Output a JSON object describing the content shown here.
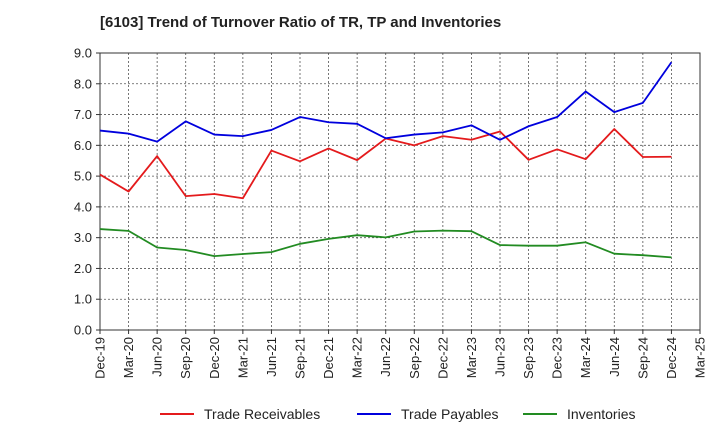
{
  "chart_data": {
    "type": "line",
    "title": "[6103]  Trend of Turnover Ratio of TR, TP and Inventories",
    "xlabel": "",
    "ylabel": "",
    "ylim": [
      0,
      9
    ],
    "yticks": [
      "0.0",
      "1.0",
      "2.0",
      "3.0",
      "4.0",
      "5.0",
      "6.0",
      "7.0",
      "8.0",
      "9.0"
    ],
    "categories": [
      "Dec-19",
      "Mar-20",
      "Jun-20",
      "Sep-20",
      "Dec-20",
      "Mar-21",
      "Jun-21",
      "Sep-21",
      "Dec-21",
      "Mar-22",
      "Jun-22",
      "Sep-22",
      "Dec-22",
      "Mar-23",
      "Jun-23",
      "Sep-23",
      "Dec-23",
      "Mar-24",
      "Jun-24",
      "Sep-24",
      "Dec-24",
      "Mar-25"
    ],
    "grid": true,
    "legend_position": "bottom",
    "series": [
      {
        "name": "Trade Receivables",
        "color": "#e41a1c",
        "values": [
          5.05,
          4.5,
          5.65,
          4.35,
          4.42,
          4.28,
          5.83,
          5.48,
          5.9,
          5.52,
          6.22,
          6.0,
          6.3,
          6.18,
          6.45,
          5.53,
          5.87,
          5.55,
          6.53,
          5.62,
          5.63,
          null
        ]
      },
      {
        "name": "Trade Payables",
        "color": "#0000dd",
        "values": [
          6.48,
          6.38,
          6.12,
          6.78,
          6.35,
          6.3,
          6.5,
          6.92,
          6.75,
          6.7,
          6.23,
          6.35,
          6.42,
          6.65,
          6.18,
          6.62,
          6.92,
          7.75,
          7.08,
          7.38,
          8.7,
          null
        ]
      },
      {
        "name": "Inventories",
        "color": "#228b22",
        "values": [
          3.28,
          3.22,
          2.68,
          2.6,
          2.4,
          2.47,
          2.53,
          2.8,
          2.96,
          3.08,
          3.01,
          3.2,
          3.23,
          3.21,
          2.76,
          2.74,
          2.74,
          2.85,
          2.48,
          2.43,
          2.36,
          null
        ]
      }
    ]
  }
}
